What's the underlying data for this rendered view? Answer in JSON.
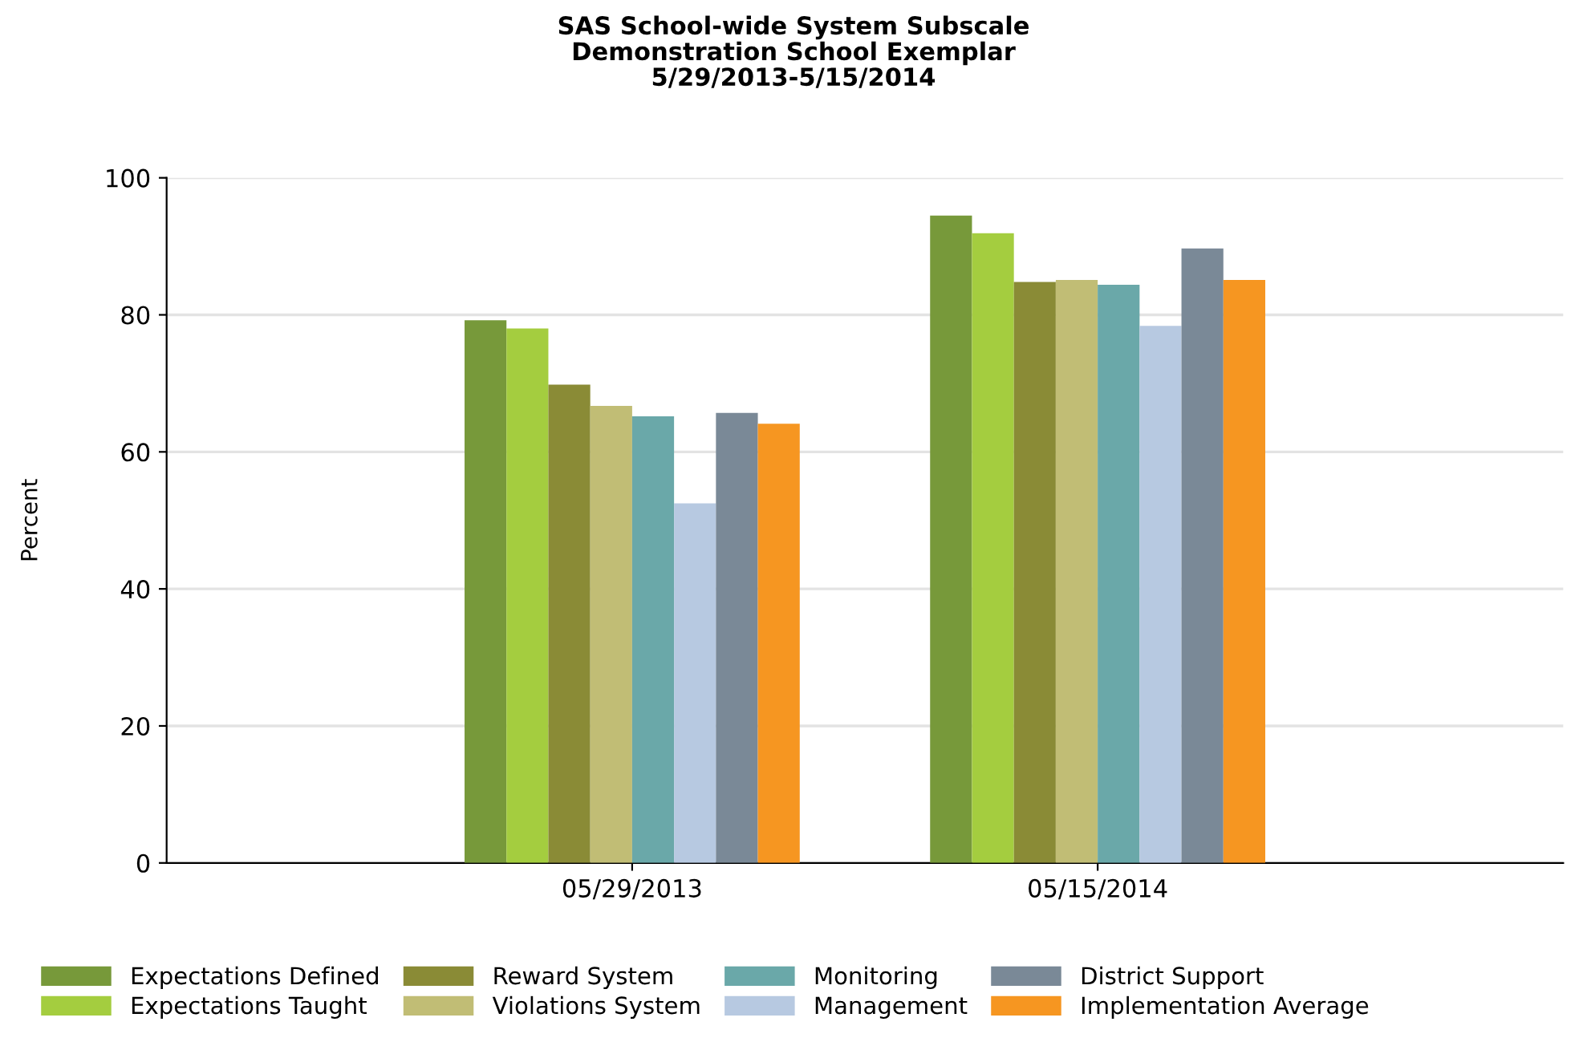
{
  "chart_data": {
    "type": "bar",
    "title": "SAS School-wide System Subscale\nDemonstration School Exemplar\n5/29/2013-5/15/2014",
    "ylabel": "Percent",
    "categories": [
      "05/29/2013",
      "05/15/2014"
    ],
    "series": [
      {
        "name": "Expectations Defined",
        "color": "#77993a",
        "values": [
          79.2,
          94.5
        ]
      },
      {
        "name": "Expectations Taught",
        "color": "#a4cd3f",
        "values": [
          78.0,
          91.9
        ]
      },
      {
        "name": "Reward System",
        "color": "#8a8b36",
        "values": [
          69.8,
          84.8
        ]
      },
      {
        "name": "Violations System",
        "color": "#c1bd75",
        "values": [
          66.7,
          85.1
        ]
      },
      {
        "name": "Monitoring",
        "color": "#6aa8a9",
        "values": [
          65.2,
          84.4
        ]
      },
      {
        "name": "Management",
        "color": "#b7c9e1",
        "values": [
          52.5,
          78.4
        ]
      },
      {
        "name": "District Support",
        "color": "#7a8997",
        "values": [
          65.7,
          89.7
        ]
      },
      {
        "name": "Implementation Average",
        "color": "#f69621",
        "values": [
          64.1,
          85.1
        ]
      }
    ],
    "ylim": [
      0,
      100
    ],
    "yticks": [
      0,
      20,
      40,
      60,
      80,
      100
    ],
    "grid": "y",
    "legend": "bottom"
  }
}
